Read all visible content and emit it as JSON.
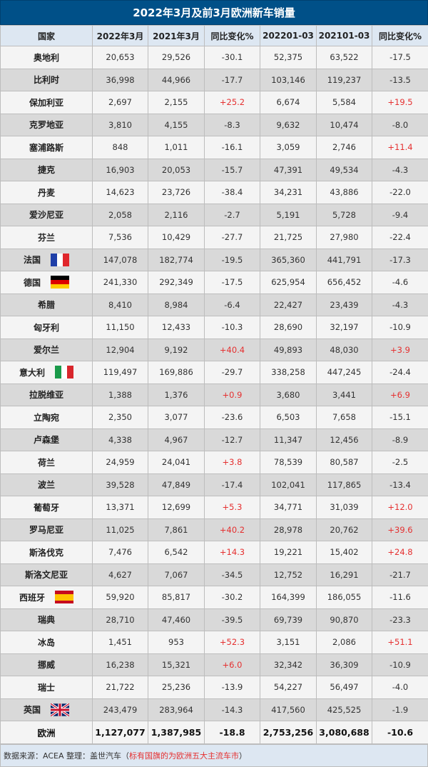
{
  "title": "2022年3月及前3月欧洲新车销量",
  "headers": [
    "国家",
    "2022年3月",
    "2021年3月",
    "同比变化%",
    "202201-03",
    "202101-03",
    "同比变化%"
  ],
  "colors": {
    "header_bg": "#005088",
    "positive": "#e53030",
    "total_change": "#1a9a4a"
  },
  "rows": [
    {
      "country": "奥地利",
      "m22": "20,653",
      "m21": "29,526",
      "chg": "-30.1",
      "y22": "52,375",
      "y21": "63,522",
      "ychg": "-17.5"
    },
    {
      "country": "比利时",
      "m22": "36,998",
      "m21": "44,966",
      "chg": "-17.7",
      "y22": "103,146",
      "y21": "119,237",
      "ychg": "-13.5"
    },
    {
      "country": "保加利亚",
      "m22": "2,697",
      "m21": "2,155",
      "chg": "+25.2",
      "y22": "6,674",
      "y21": "5,584",
      "ychg": "+19.5"
    },
    {
      "country": "克罗地亚",
      "m22": "3,810",
      "m21": "4,155",
      "chg": "-8.3",
      "y22": "9,632",
      "y21": "10,474",
      "ychg": "-8.0"
    },
    {
      "country": "塞浦路斯",
      "m22": "848",
      "m21": "1,011",
      "chg": "-16.1",
      "y22": "3,059",
      "y21": "2,746",
      "ychg": "+11.4"
    },
    {
      "country": "捷克",
      "m22": "16,903",
      "m21": "20,053",
      "chg": "-15.7",
      "y22": "47,391",
      "y21": "49,534",
      "ychg": "-4.3"
    },
    {
      "country": "丹麦",
      "m22": "14,623",
      "m21": "23,726",
      "chg": "-38.4",
      "y22": "34,231",
      "y21": "43,886",
      "ychg": "-22.0"
    },
    {
      "country": "爱沙尼亚",
      "m22": "2,058",
      "m21": "2,116",
      "chg": "-2.7",
      "y22": "5,191",
      "y21": "5,728",
      "ychg": "-9.4"
    },
    {
      "country": "芬兰",
      "m22": "7,536",
      "m21": "10,429",
      "chg": "-27.7",
      "y22": "21,725",
      "y21": "27,980",
      "ychg": "-22.4"
    },
    {
      "country": "法国",
      "flag": "france",
      "m22": "147,078",
      "m21": "182,774",
      "chg": "-19.5",
      "y22": "365,360",
      "y21": "441,791",
      "ychg": "-17.3"
    },
    {
      "country": "德国",
      "flag": "germany",
      "m22": "241,330",
      "m21": "292,349",
      "chg": "-17.5",
      "y22": "625,954",
      "y21": "656,452",
      "ychg": "-4.6"
    },
    {
      "country": "希腊",
      "m22": "8,410",
      "m21": "8,984",
      "chg": "-6.4",
      "y22": "22,427",
      "y21": "23,439",
      "ychg": "-4.3"
    },
    {
      "country": "匈牙利",
      "m22": "11,150",
      "m21": "12,433",
      "chg": "-10.3",
      "y22": "28,690",
      "y21": "32,197",
      "ychg": "-10.9"
    },
    {
      "country": "爱尔兰",
      "m22": "12,904",
      "m21": "9,192",
      "chg": "+40.4",
      "y22": "49,893",
      "y21": "48,030",
      "ychg": "+3.9"
    },
    {
      "country": "意大利",
      "flag": "italy",
      "m22": "119,497",
      "m21": "169,886",
      "chg": "-29.7",
      "y22": "338,258",
      "y21": "447,245",
      "ychg": "-24.4"
    },
    {
      "country": "拉脱维亚",
      "m22": "1,388",
      "m21": "1,376",
      "chg": "+0.9",
      "y22": "3,680",
      "y21": "3,441",
      "ychg": "+6.9"
    },
    {
      "country": "立陶宛",
      "m22": "2,350",
      "m21": "3,077",
      "chg": "-23.6",
      "y22": "6,503",
      "y21": "7,658",
      "ychg": "-15.1"
    },
    {
      "country": "卢森堡",
      "m22": "4,338",
      "m21": "4,967",
      "chg": "-12.7",
      "y22": "11,347",
      "y21": "12,456",
      "ychg": "-8.9"
    },
    {
      "country": "荷兰",
      "m22": "24,959",
      "m21": "24,041",
      "chg": "+3.8",
      "y22": "78,539",
      "y21": "80,587",
      "ychg": "-2.5"
    },
    {
      "country": "波兰",
      "m22": "39,528",
      "m21": "47,849",
      "chg": "-17.4",
      "y22": "102,041",
      "y21": "117,865",
      "ychg": "-13.4"
    },
    {
      "country": "葡萄牙",
      "m22": "13,371",
      "m21": "12,699",
      "chg": "+5.3",
      "y22": "34,771",
      "y21": "31,039",
      "ychg": "+12.0"
    },
    {
      "country": "罗马尼亚",
      "m22": "11,025",
      "m21": "7,861",
      "chg": "+40.2",
      "y22": "28,978",
      "y21": "20,762",
      "ychg": "+39.6"
    },
    {
      "country": "斯洛伐克",
      "m22": "7,476",
      "m21": "6,542",
      "chg": "+14.3",
      "y22": "19,221",
      "y21": "15,402",
      "ychg": "+24.8"
    },
    {
      "country": "斯洛文尼亚",
      "m22": "4,627",
      "m21": "7,067",
      "chg": "-34.5",
      "y22": "12,752",
      "y21": "16,291",
      "ychg": "-21.7"
    },
    {
      "country": "西班牙",
      "flag": "spain",
      "m22": "59,920",
      "m21": "85,817",
      "chg": "-30.2",
      "y22": "164,399",
      "y21": "186,055",
      "ychg": "-11.6"
    },
    {
      "country": "瑞典",
      "m22": "28,710",
      "m21": "47,460",
      "chg": "-39.5",
      "y22": "69,739",
      "y21": "90,870",
      "ychg": "-23.3"
    },
    {
      "country": "冰岛",
      "m22": "1,451",
      "m21": "953",
      "chg": "+52.3",
      "y22": "3,151",
      "y21": "2,086",
      "ychg": "+51.1"
    },
    {
      "country": "挪威",
      "m22": "16,238",
      "m21": "15,321",
      "chg": "+6.0",
      "y22": "32,342",
      "y21": "36,309",
      "ychg": "-10.9"
    },
    {
      "country": "瑞士",
      "m22": "21,722",
      "m21": "25,236",
      "chg": "-13.9",
      "y22": "54,227",
      "y21": "56,497",
      "ychg": "-4.0"
    },
    {
      "country": "英国",
      "flag": "uk",
      "m22": "243,479",
      "m21": "283,964",
      "chg": "-14.3",
      "y22": "417,560",
      "y21": "425,525",
      "ychg": "-1.9"
    }
  ],
  "total": {
    "country": "欧洲",
    "m22": "1,127,077",
    "m21": "1,387,985",
    "chg": "-18.8",
    "y22": "2,753,256",
    "y21": "3,080,688",
    "ychg": "-10.6"
  },
  "footer": {
    "source": "数据来源：ACEA 整理：盖世汽车（",
    "note": "标有国旗的为欧洲五大主流车市",
    "close": "）"
  }
}
